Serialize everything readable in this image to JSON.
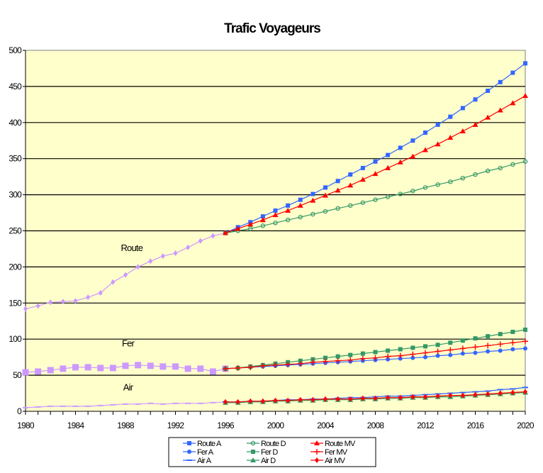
{
  "chart_data": {
    "type": "line",
    "title": "Trafic Voyageurs",
    "xlabel": "",
    "ylabel": "",
    "xlim": [
      1980,
      2020
    ],
    "ylim": [
      0,
      500
    ],
    "x_ticks": [
      1980,
      1984,
      1988,
      1992,
      1996,
      2000,
      2004,
      2008,
      2012,
      2016,
      2020
    ],
    "x_tick_labels": [
      "1980",
      "1984",
      "1988",
      "1992",
      "1996",
      "2000",
      "2004",
      "2008",
      "2012",
      "2016",
      "2020"
    ],
    "y_ticks": [
      0,
      50,
      100,
      150,
      200,
      250,
      300,
      350,
      400,
      450,
      500
    ],
    "y_tick_labels": [
      "0",
      "50",
      "100",
      "150",
      "200",
      "250",
      "300",
      "350",
      "400",
      "450",
      "500"
    ],
    "grid": "horizontal",
    "background": "#ffffcc",
    "annotations": [
      {
        "text": "Route",
        "x": 1988.5,
        "y": 222
      },
      {
        "text": "Fer",
        "x": 1988.2,
        "y": 90
      },
      {
        "text": "Air",
        "x": 1988.2,
        "y": 29
      }
    ],
    "legend_position": "bottom",
    "historical": [
      {
        "name": "Route",
        "color": "#cc99ff",
        "marker": "diamond",
        "x": [
          1980,
          1981,
          1982,
          1983,
          1984,
          1985,
          1986,
          1987,
          1988,
          1989,
          1990,
          1991,
          1992,
          1993,
          1994,
          1995,
          1996
        ],
        "values": [
          142,
          146,
          151,
          152,
          153,
          158,
          164,
          179,
          189,
          200,
          208,
          215,
          219,
          227,
          236,
          243,
          247
        ]
      },
      {
        "name": "Fer",
        "color": "#cc99ff",
        "marker": "bigsquare",
        "x": [
          1980,
          1981,
          1982,
          1983,
          1984,
          1985,
          1986,
          1987,
          1988,
          1989,
          1990,
          1991,
          1992,
          1993,
          1994,
          1995,
          1996
        ],
        "values": [
          54,
          55,
          57,
          59,
          61,
          61,
          60,
          60,
          63,
          64,
          63,
          62,
          62,
          59,
          59,
          55,
          59
        ]
      },
      {
        "name": "Air",
        "color": "#cc99ff",
        "marker": "dash",
        "x": [
          1980,
          1981,
          1982,
          1983,
          1984,
          1985,
          1986,
          1987,
          1988,
          1989,
          1990,
          1991,
          1992,
          1993,
          1994,
          1995,
          1996
        ],
        "values": [
          5,
          6,
          7,
          7,
          7,
          7,
          8,
          9,
          10,
          10,
          11,
          10,
          11,
          11,
          11,
          12,
          13
        ]
      }
    ],
    "x": [
      1996,
      1997,
      1998,
      1999,
      2000,
      2001,
      2002,
      2003,
      2004,
      2005,
      2006,
      2007,
      2008,
      2009,
      2010,
      2011,
      2012,
      2013,
      2014,
      2015,
      2016,
      2017,
      2018,
      2019,
      2020
    ],
    "series": [
      {
        "name": "Route A",
        "color": "#3366ff",
        "marker": "square",
        "values": [
          247,
          255,
          262,
          270,
          278,
          285,
          293,
          301,
          310,
          319,
          328,
          337,
          346,
          355,
          365,
          375,
          386,
          397,
          408,
          420,
          432,
          444,
          456,
          469,
          482
        ]
      },
      {
        "name": "Fer A",
        "color": "#3366ff",
        "marker": "circle",
        "values": [
          59,
          60,
          61,
          62,
          63,
          64,
          65,
          66,
          67,
          68,
          69,
          70,
          71,
          72,
          73,
          74,
          75,
          77,
          78,
          80,
          81,
          83,
          84,
          86,
          87
        ]
      },
      {
        "name": "Air A",
        "color": "#3366ff",
        "marker": "dash",
        "values": [
          13,
          13,
          14,
          14,
          15,
          16,
          16,
          17,
          17,
          18,
          19,
          19,
          20,
          21,
          21,
          22,
          23,
          24,
          25,
          26,
          27,
          28,
          30,
          31,
          33
        ]
      },
      {
        "name": "Route D",
        "color": "#339966",
        "marker": "opencircle",
        "values": [
          247,
          250,
          253,
          257,
          261,
          265,
          269,
          273,
          277,
          281,
          285,
          289,
          293,
          297,
          301,
          305,
          310,
          314,
          318,
          323,
          328,
          333,
          337,
          342,
          346
        ]
      },
      {
        "name": "Fer D",
        "color": "#339966",
        "marker": "square",
        "values": [
          59,
          60,
          62,
          64,
          66,
          68,
          70,
          72,
          74,
          76,
          78,
          80,
          82,
          84,
          86,
          88,
          90,
          92,
          95,
          98,
          101,
          104,
          107,
          110,
          113
        ]
      },
      {
        "name": "Air D",
        "color": "#339966",
        "marker": "triangle",
        "values": [
          12,
          12,
          13,
          13,
          14,
          14,
          15,
          15,
          16,
          16,
          16,
          17,
          17,
          18,
          18,
          19,
          19,
          20,
          20,
          21,
          22,
          23,
          24,
          25,
          26
        ]
      },
      {
        "name": "Route MV",
        "color": "#ff0000",
        "marker": "triangle",
        "values": [
          247,
          253,
          259,
          265,
          272,
          278,
          285,
          292,
          299,
          306,
          313,
          321,
          329,
          337,
          345,
          353,
          362,
          370,
          379,
          388,
          397,
          407,
          417,
          427,
          437
        ]
      },
      {
        "name": "Fer MV",
        "color": "#ff0000",
        "marker": "plus",
        "values": [
          59,
          60,
          61,
          63,
          64,
          65,
          66,
          68,
          69,
          70,
          71,
          73,
          74,
          76,
          77,
          79,
          81,
          83,
          85,
          87,
          89,
          91,
          93,
          95,
          97
        ]
      },
      {
        "name": "Air MV",
        "color": "#ff0000",
        "marker": "diamond",
        "values": [
          13,
          13,
          14,
          14,
          15,
          15,
          16,
          16,
          17,
          17,
          17,
          18,
          18,
          19,
          19,
          20,
          20,
          21,
          22,
          22,
          23,
          24,
          25,
          26,
          27
        ]
      }
    ],
    "legend": [
      [
        "Route A",
        "Route D",
        "Route MV"
      ],
      [
        "Fer A",
        "Fer D",
        "Fer MV"
      ],
      [
        "Air A",
        "Air D",
        "Air MV"
      ]
    ]
  }
}
